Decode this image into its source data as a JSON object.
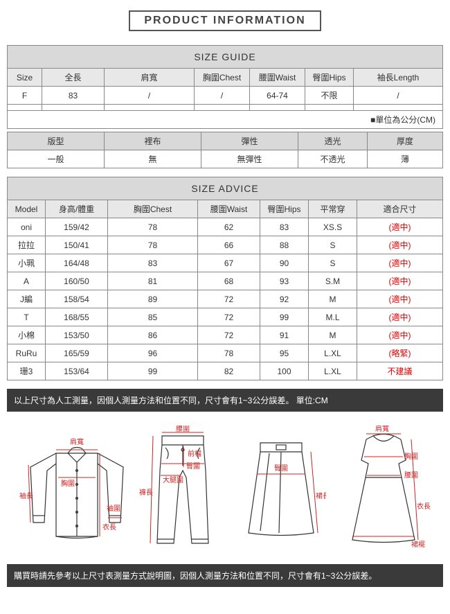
{
  "title": "PRODUCT INFORMATION",
  "sizeGuide": {
    "header": "SIZE GUIDE",
    "cols": [
      "Size",
      "全長",
      "肩寬",
      "胸圍Chest",
      "腰圍Waist",
      "臀圍Hips",
      "袖長Length"
    ],
    "row": [
      "F",
      "83",
      "/",
      "/",
      "64-74",
      "不限",
      "/"
    ],
    "note": "■單位為公分(CM)"
  },
  "fabric": {
    "cols": [
      "版型",
      "裡布",
      "彈性",
      "透光",
      "厚度"
    ],
    "row": [
      "一般",
      "無",
      "無彈性",
      "不透光",
      "薄"
    ]
  },
  "sizeAdvice": {
    "header": "SIZE ADVICE",
    "cols": [
      "Model",
      "身高/體重",
      "胸圍Chest",
      "腰圍Waist",
      "臀圍Hips",
      "平常穿",
      "適合尺寸"
    ],
    "rows": [
      [
        "oni",
        "159/42",
        "78",
        "62",
        "83",
        "XS.S",
        "(適中)"
      ],
      [
        "拉拉",
        "150/41",
        "78",
        "66",
        "88",
        "S",
        "(適中)"
      ],
      [
        "小珮",
        "164/48",
        "83",
        "67",
        "90",
        "S",
        "(適中)"
      ],
      [
        "A",
        "160/50",
        "81",
        "68",
        "93",
        "S.M",
        "(適中)"
      ],
      [
        "J編",
        "158/54",
        "89",
        "72",
        "92",
        "M",
        "(適中)"
      ],
      [
        "T",
        "168/55",
        "85",
        "72",
        "99",
        "M.L",
        "(適中)"
      ],
      [
        "小棉",
        "153/50",
        "86",
        "72",
        "91",
        "M",
        "(適中)"
      ],
      [
        "RuRu",
        "165/59",
        "96",
        "78",
        "95",
        "L.XL",
        "(略緊)"
      ],
      [
        "珊3",
        "153/64",
        "99",
        "82",
        "100",
        "L.XL",
        "不建議"
      ]
    ]
  },
  "note1": "以上尺寸為人工測量，因個人測量方法和位置不同，尺寸會有1~3公分誤差。 單位:CM",
  "note2": "購買時請先參考以上尺寸表測量方式說明圖，因個人測量方法和位置不同，尺寸會有1~3公分誤差。",
  "diagramLabels": {
    "shirt": {
      "shoulder": "肩寬",
      "chest": "胸圍",
      "sleeve": "袖長",
      "cuff": "袖圍",
      "length": "衣長"
    },
    "pants": {
      "waist": "腰圍",
      "front": "前檔",
      "hip": "臀圍",
      "thigh": "大腿圍",
      "length": "褲長"
    },
    "skirt": {
      "hip": "臀圍",
      "length": "裙長"
    },
    "dress": {
      "shoulder": "肩寬",
      "chest": "胸圍",
      "waist": "腰圍",
      "length": "衣長",
      "hem": "裙襬"
    }
  },
  "style": {
    "colors": {
      "border": "#888",
      "headerBg": "#d9d9d9",
      "subHeaderBg": "#e8e8e8",
      "red": "#d00",
      "dark": "#3a3a3a",
      "labelRed": "#cc2222"
    },
    "tableWidthPx": 630,
    "bodyWidthPx": 650,
    "fontSizePx": 12
  }
}
